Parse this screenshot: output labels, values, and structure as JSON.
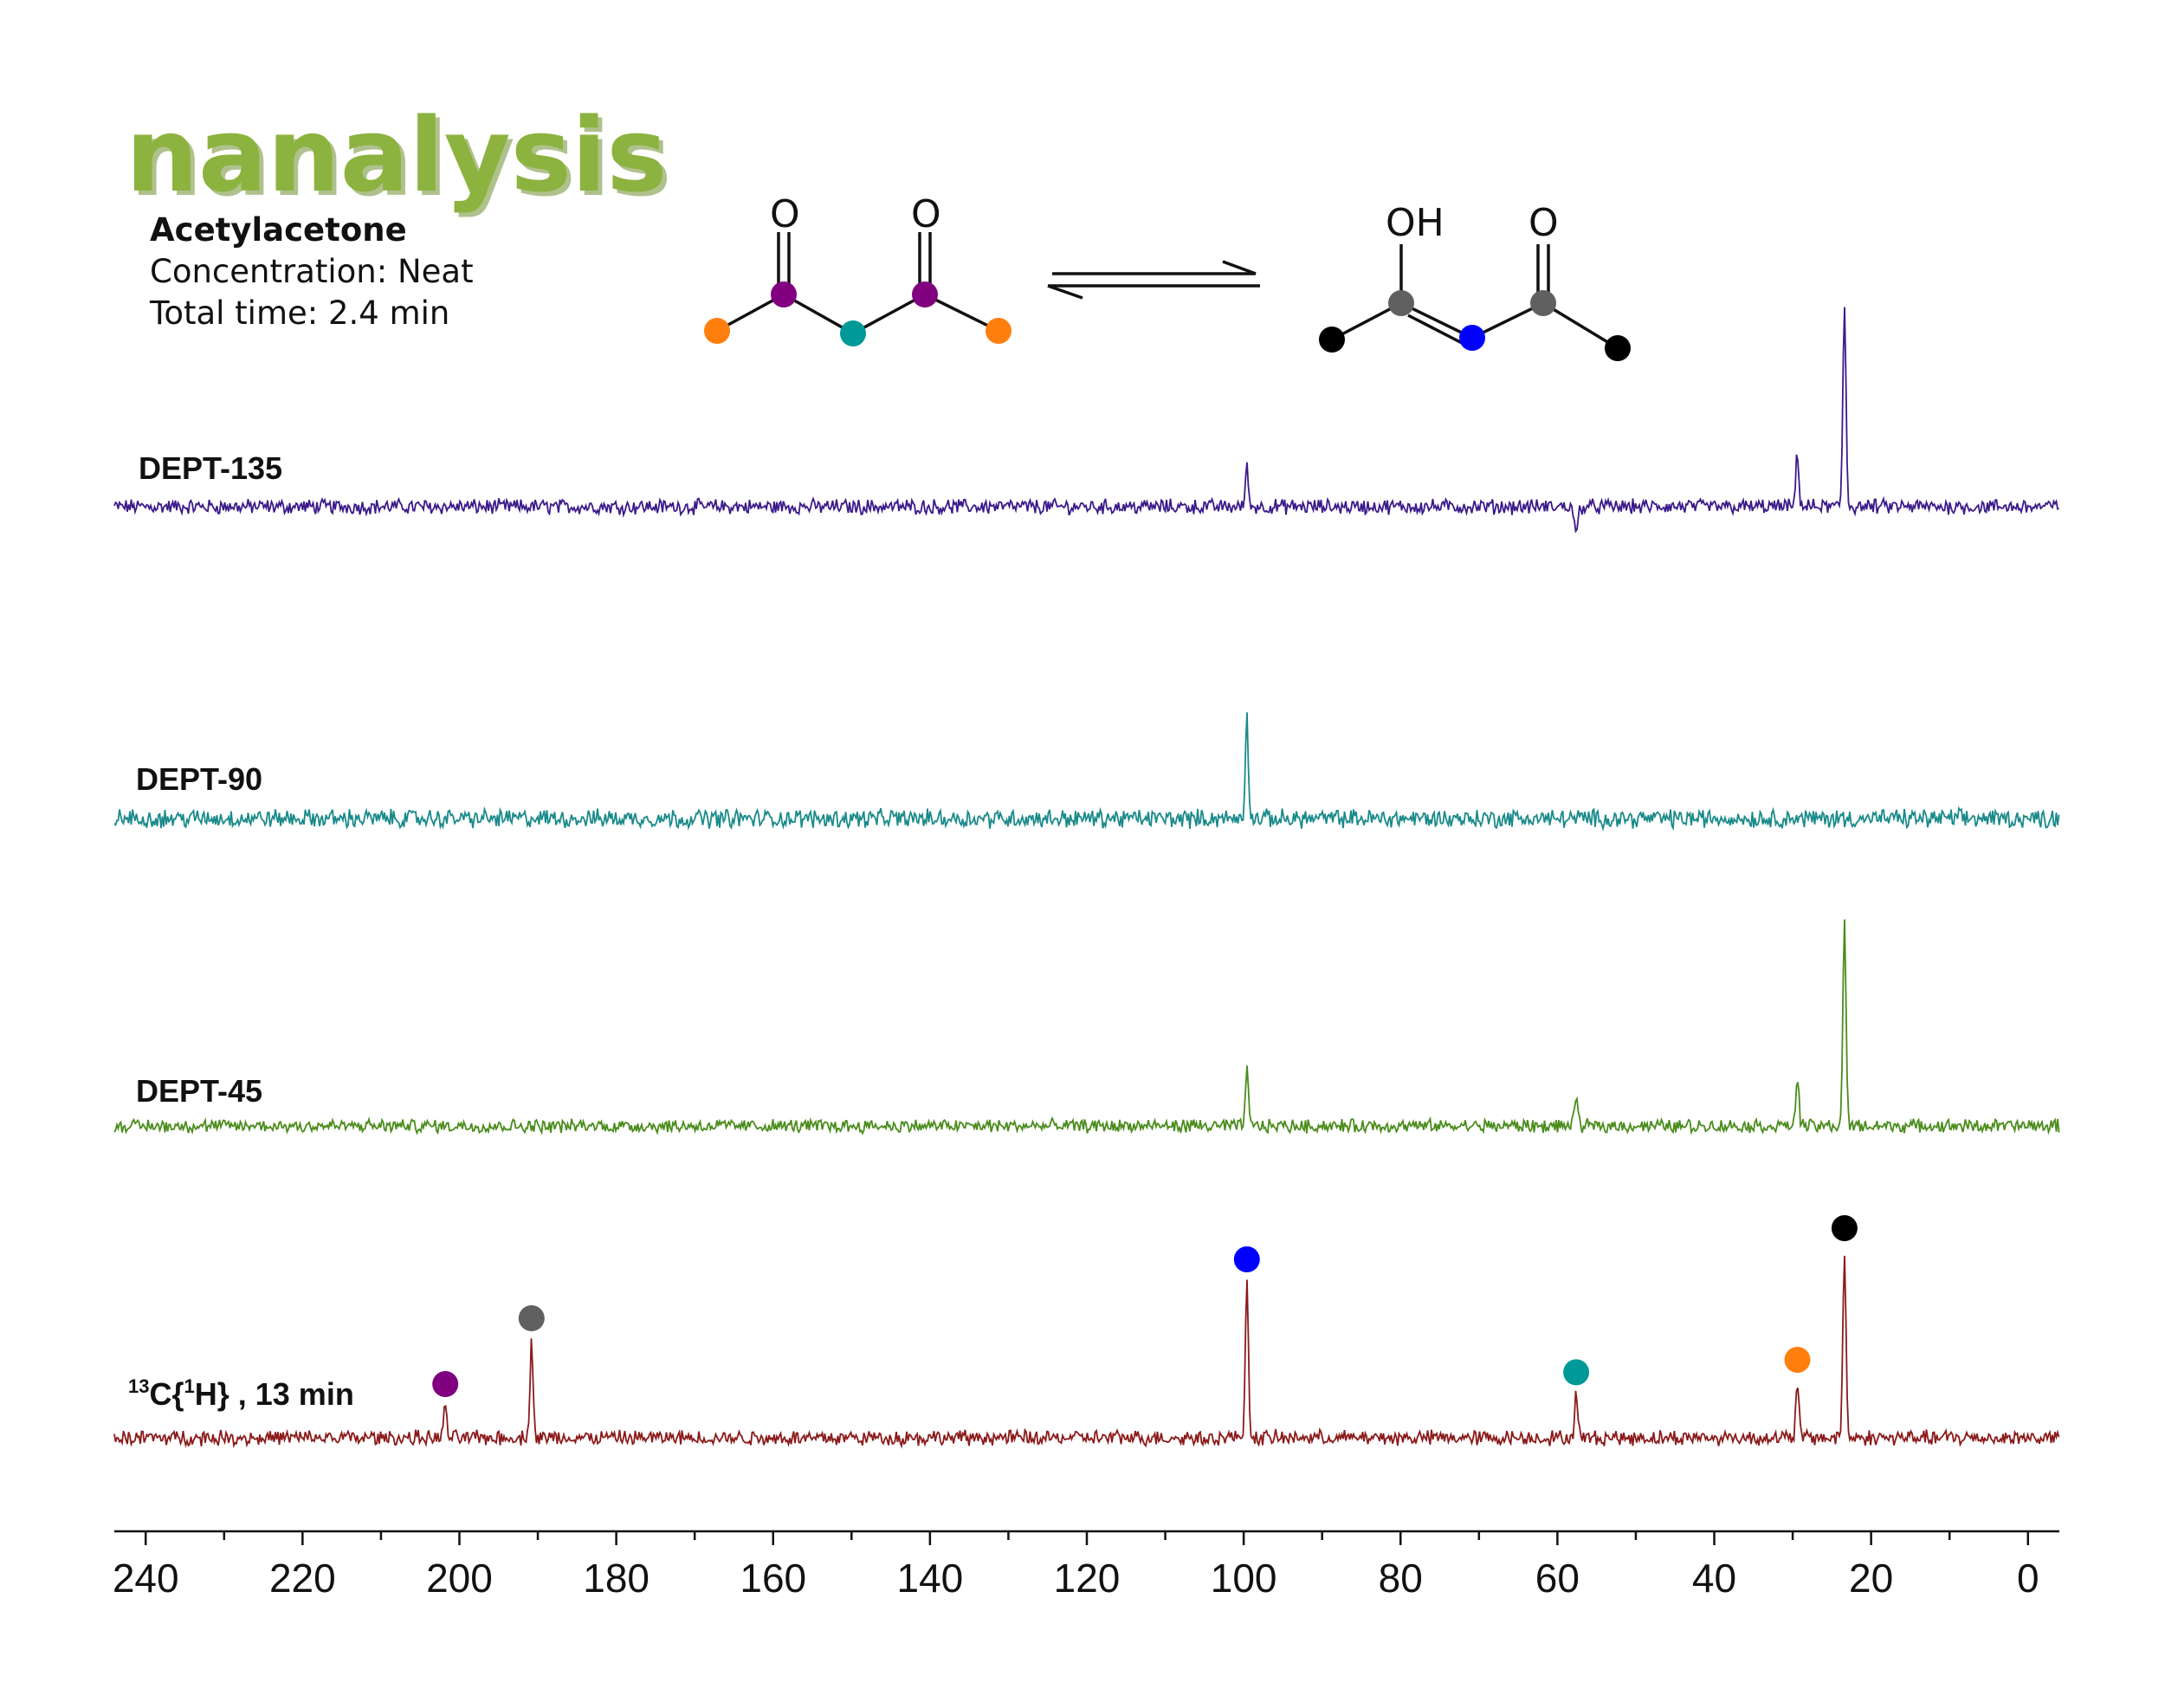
{
  "header": {
    "logo_text": "nanalysis",
    "compound": "Acetylacetone",
    "concentration": "Concentration: Neat",
    "total_time": "Total time: 2.4 min"
  },
  "structures": {
    "keto_labels": [
      "O",
      "O"
    ],
    "enol_labels": [
      "OH",
      "O"
    ],
    "keto_atom_colors": [
      "#ff7f0e",
      "#800080",
      "#009999",
      "#800080",
      "#ff7f0e"
    ],
    "enol_atom_colors": [
      "#000000",
      "#606060",
      "#0000ff",
      "#606060",
      "#000000"
    ]
  },
  "chart_data": {
    "type": "line",
    "xlabel": "",
    "ylabel": "",
    "xlim": [
      244,
      -4
    ],
    "x_reversed": true,
    "x_ticks": [
      240,
      220,
      200,
      180,
      160,
      140,
      120,
      100,
      80,
      60,
      40,
      20,
      0
    ],
    "x_tick_labels": [
      "240",
      "220",
      "200",
      "180",
      "160",
      "140",
      "120",
      "100",
      "80",
      "60",
      "40",
      "20",
      "0"
    ],
    "series": [
      {
        "name": "DEPT-135",
        "color": "#3b1a8a",
        "noise": 0.09,
        "peaks": [
          {
            "ppm": 99.6,
            "height": 0.55
          },
          {
            "ppm": 57.6,
            "height": -0.45
          },
          {
            "ppm": 29.4,
            "height": 0.75
          },
          {
            "ppm": 23.4,
            "height": 2.9
          }
        ]
      },
      {
        "name": "DEPT-90",
        "color": "#1a8a8a",
        "noise": 0.11,
        "peaks": [
          {
            "ppm": 99.6,
            "height": 1.45
          }
        ]
      },
      {
        "name": "DEPT-45",
        "color": "#4a8c1c",
        "noise": 0.08,
        "peaks": [
          {
            "ppm": 99.6,
            "height": 0.8
          },
          {
            "ppm": 57.6,
            "height": 0.45
          },
          {
            "ppm": 29.4,
            "height": 0.72
          },
          {
            "ppm": 23.4,
            "height": 2.95
          }
        ]
      },
      {
        "name": "13C{1H} , 13 min",
        "color": "#8b1a1a",
        "noise": 0.09,
        "peaks": [
          {
            "ppm": 201.8,
            "height": 0.45,
            "marker": "#800080"
          },
          {
            "ppm": 190.8,
            "height": 1.4,
            "marker": "#606060"
          },
          {
            "ppm": 99.6,
            "height": 2.25,
            "marker": "#0000ff"
          },
          {
            "ppm": 57.6,
            "height": 0.62,
            "marker": "#009999"
          },
          {
            "ppm": 29.4,
            "height": 0.8,
            "marker": "#ff7f0e"
          },
          {
            "ppm": 23.4,
            "height": 2.7,
            "marker": "#000000"
          }
        ]
      }
    ]
  }
}
